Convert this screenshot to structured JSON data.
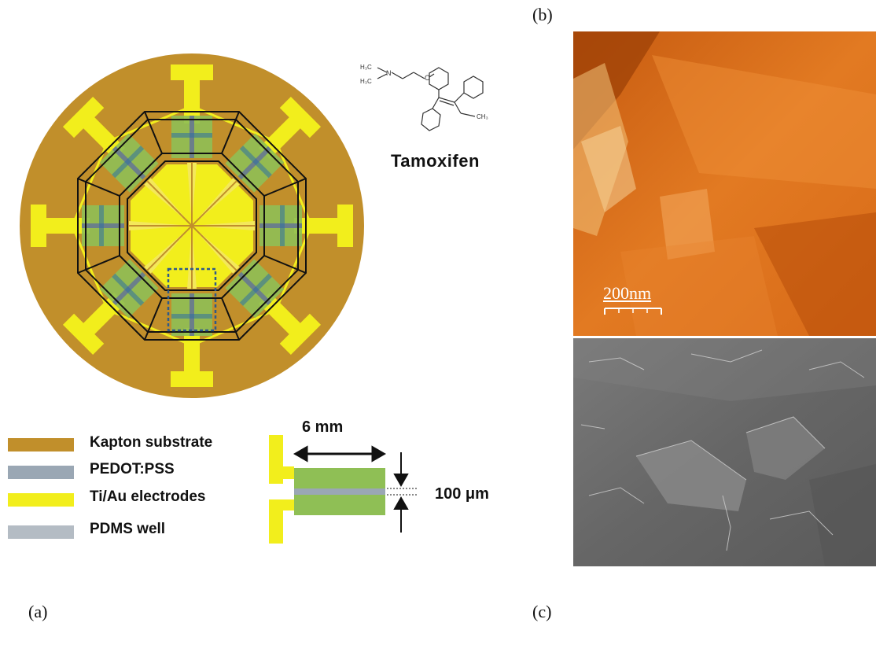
{
  "panels": {
    "a_label": "(a)",
    "b_label": "(b)",
    "c_label": "(c)"
  },
  "molecule": {
    "name": "Tamoxifen",
    "atoms": {
      "h3c_top": "H₃C",
      "n": "N",
      "h3c_bottom": "H₃C",
      "o": "O",
      "ch3": "CH₃"
    }
  },
  "legend": [
    {
      "label": "Kapton substrate",
      "color": "#c18f2b"
    },
    {
      "label": "PEDOT:PSS",
      "color": "#9aa7b4"
    },
    {
      "label": "Ti/Au electrodes",
      "color": "#f2ee1c"
    },
    {
      "label": "PDMS well",
      "color": "#b4bcc4"
    }
  ],
  "dimensions": {
    "width_label": "6 mm",
    "gap_label": "100 μm"
  },
  "afm": {
    "scale_bar_label": "200nm"
  },
  "colors": {
    "kapton": "#c18f2b",
    "gold": "#f2ee1c",
    "pedot_green": "#8fbf55",
    "pedot_gray": "#9aa7b4",
    "afm_orange": "#e0781c",
    "sem_gray": "#6e6e6e"
  }
}
